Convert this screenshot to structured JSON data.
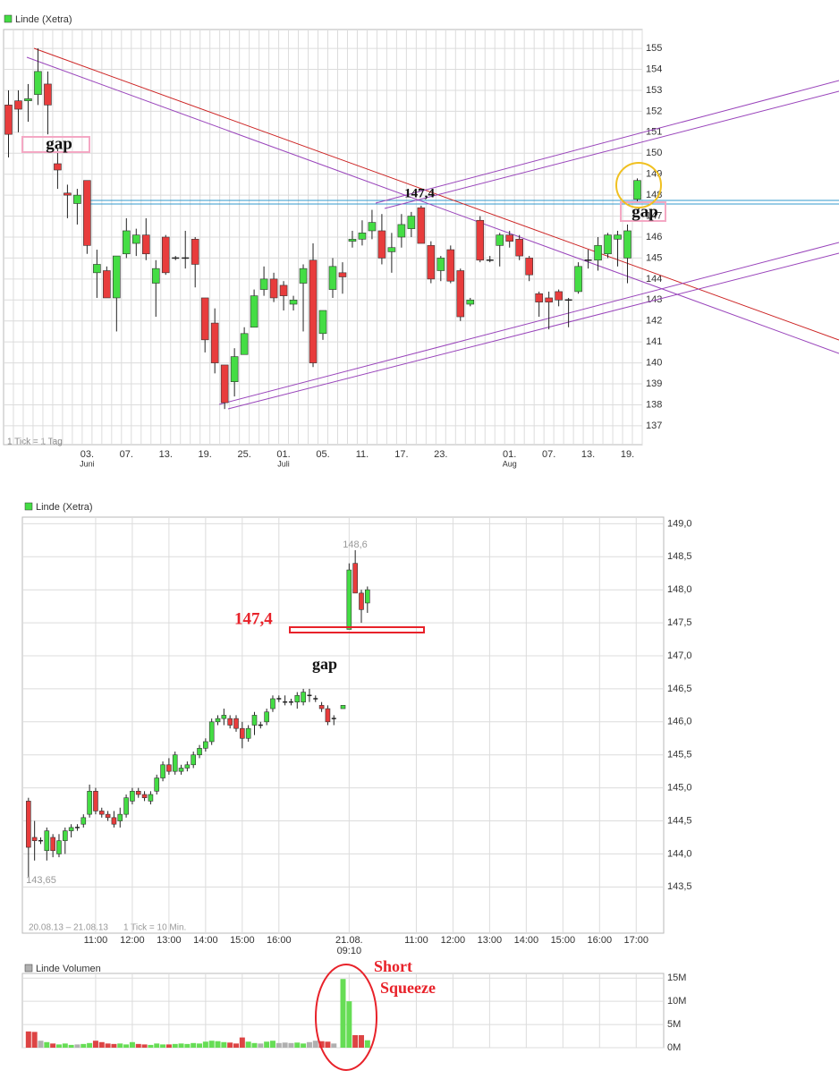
{
  "chart_data": [
    {
      "type": "candlestick",
      "title": "Linde (Xetra)",
      "footnote": "1 Tick = 1 Tag",
      "up_color": "#44dd44",
      "down_color": "#e83c3c",
      "flat_color": "#222222",
      "categories": [
        null,
        null,
        null,
        null,
        null,
        null,
        null,
        null,
        "03.",
        null,
        null,
        null,
        "07.",
        null,
        null,
        null,
        "13.",
        null,
        null,
        null,
        "19.",
        null,
        null,
        null,
        "25.",
        null,
        null,
        null,
        "01.",
        null,
        null,
        null,
        "05.",
        null,
        null,
        null,
        "11.",
        null,
        null,
        null,
        "17.",
        null,
        null,
        null,
        "23.",
        null,
        null,
        null,
        null,
        null,
        null,
        "01.",
        null,
        null,
        null,
        "07.",
        null,
        null,
        null,
        "13.",
        null,
        null,
        null,
        "19.",
        null
      ],
      "months": [
        null,
        null,
        null,
        null,
        null,
        null,
        null,
        null,
        "Juni",
        null,
        null,
        null,
        null,
        null,
        null,
        null,
        null,
        null,
        null,
        null,
        null,
        null,
        null,
        null,
        null,
        null,
        null,
        null,
        "Juli",
        null,
        null,
        null,
        null,
        null,
        null,
        null,
        null,
        null,
        null,
        null,
        null,
        null,
        null,
        null,
        null,
        null,
        null,
        null,
        null,
        null,
        null,
        "Aug",
        null,
        null,
        null,
        null,
        null,
        null,
        null,
        null,
        null,
        null,
        null,
        null,
        null
      ],
      "open": [
        152.3,
        152.5,
        152.5,
        152.8,
        153.3,
        149.5,
        148.1,
        147.6,
        148.7,
        144.3,
        144.4,
        143.1,
        145.2,
        145.7,
        146.1,
        143.8,
        146.0,
        145.0,
        145.0,
        145.9,
        143.1,
        141.9,
        139.9,
        139.1,
        140.4,
        141.7,
        143.5,
        144.0,
        143.7,
        142.8,
        143.8,
        144.9,
        141.4,
        143.5,
        144.3,
        145.8,
        145.9,
        146.3,
        146.3,
        145.3,
        146.0,
        146.4,
        147.4,
        145.6,
        144.4,
        145.4,
        144.4,
        142.8,
        146.8,
        144.9,
        145.6,
        146.1,
        145.9,
        145.0,
        143.3,
        143.1,
        143.4,
        143.0,
        143.4,
        144.9,
        144.9,
        145.2,
        145.9,
        145.0,
        147.8
      ],
      "high": [
        153.0,
        153.0,
        153.3,
        155.0,
        153.9,
        150.2,
        148.5,
        148.3,
        148.6,
        145.4,
        144.6,
        145.1,
        146.9,
        146.4,
        146.9,
        144.9,
        146.1,
        145.1,
        146.3,
        146.0,
        143.1,
        142.6,
        139.9,
        140.7,
        141.7,
        143.5,
        144.6,
        144.3,
        143.9,
        143.2,
        144.7,
        145.7,
        142.5,
        145.0,
        144.8,
        146.3,
        146.8,
        147.3,
        147.1,
        146.2,
        147.1,
        147.2,
        147.5,
        145.8,
        145.1,
        145.6,
        144.5,
        143.1,
        147.0,
        145.1,
        146.2,
        146.3,
        146.1,
        145.1,
        143.4,
        143.4,
        143.5,
        143.1,
        144.8,
        145.4,
        146.0,
        146.2,
        146.3,
        146.6,
        148.8
      ],
      "low": [
        149.8,
        151.0,
        151.5,
        152.3,
        150.9,
        148.3,
        146.9,
        146.6,
        145.2,
        143.1,
        143.1,
        141.5,
        145.0,
        145.1,
        144.9,
        142.2,
        144.2,
        144.9,
        144.5,
        143.6,
        140.5,
        139.5,
        137.8,
        138.4,
        140.4,
        141.7,
        143.2,
        142.9,
        142.5,
        142.5,
        141.5,
        139.8,
        141.1,
        143.1,
        143.3,
        145.5,
        145.6,
        145.9,
        144.7,
        144.3,
        145.5,
        146.0,
        145.7,
        143.8,
        143.9,
        143.8,
        142.0,
        142.7,
        144.8,
        144.8,
        144.6,
        145.5,
        144.9,
        143.9,
        142.2,
        141.6,
        142.7,
        141.7,
        143.3,
        144.5,
        144.4,
        145.0,
        144.6,
        143.8,
        147.7
      ],
      "close": [
        150.9,
        152.1,
        152.6,
        153.9,
        152.3,
        149.2,
        148.0,
        148.0,
        145.6,
        144.7,
        143.1,
        145.1,
        146.3,
        146.1,
        145.2,
        144.5,
        144.3,
        145.0,
        145.0,
        144.7,
        141.1,
        140.0,
        138.1,
        140.3,
        141.4,
        143.2,
        144.0,
        143.1,
        143.2,
        143.0,
        144.5,
        140.0,
        142.5,
        144.6,
        144.1,
        145.9,
        146.2,
        146.7,
        145.0,
        145.5,
        146.6,
        147.0,
        145.7,
        144.0,
        145.0,
        143.9,
        142.2,
        143.0,
        144.9,
        144.9,
        146.1,
        145.8,
        145.1,
        144.2,
        142.9,
        142.9,
        143.0,
        143.0,
        144.6,
        144.9,
        145.6,
        146.1,
        146.1,
        146.3,
        148.7
      ],
      "ylim": [
        136.1,
        155.9
      ],
      "yticks": [
        137,
        138,
        139,
        140,
        141,
        142,
        143,
        144,
        145,
        146,
        147,
        148,
        149,
        150,
        151,
        152,
        153,
        154,
        155
      ],
      "grid": true,
      "annotations": [
        "gap",
        "147,4",
        "gap"
      ]
    },
    {
      "type": "candlestick",
      "title": "Linde (Xetra)",
      "period": "20.08.13 – 21.08.13",
      "footnote": "1 Tick = 10 Min.",
      "up_color": "#44dd44",
      "down_color": "#e83c3c",
      "flat_color": "#222222",
      "x": [
        "20.08.13 09:10",
        "20.08.13 09:20",
        "20.08.13 09:30",
        "20.08.13 09:40",
        "20.08.13 09:50",
        "20.08.13 10:00",
        "20.08.13 10:10",
        "20.08.13 10:20",
        "20.08.13 10:30",
        "20.08.13 10:40",
        "20.08.13 10:50",
        "20.08.13 11:00",
        "20.08.13 11:10",
        "20.08.13 11:20",
        "20.08.13 11:30",
        "20.08.13 11:40",
        "20.08.13 11:50",
        "20.08.13 12:00",
        "20.08.13 12:10",
        "20.08.13 12:20",
        "20.08.13 12:30",
        "20.08.13 12:40",
        "20.08.13 12:50",
        "20.08.13 13:00",
        "20.08.13 13:10",
        "20.08.13 13:20",
        "20.08.13 13:30",
        "20.08.13 13:40",
        "20.08.13 13:50",
        "20.08.13 14:00",
        "20.08.13 14:10",
        "20.08.13 14:20",
        "20.08.13 14:30",
        "20.08.13 14:40",
        "20.08.13 14:50",
        "20.08.13 15:00",
        "20.08.13 15:10",
        "20.08.13 15:20",
        "20.08.13 15:30",
        "20.08.13 15:40",
        "20.08.13 15:50",
        "20.08.13 16:00",
        "20.08.13 16:10",
        "20.08.13 16:20",
        "20.08.13 16:30",
        "20.08.13 16:40",
        "20.08.13 16:50",
        "20.08.13 17:00",
        "20.08.13 17:10",
        "20.08.13 17:20",
        "20.08.13 17:30",
        "21.08.13 09:00",
        "21.08.13 09:10",
        "21.08.13 09:20",
        "21.08.13 09:30",
        "21.08.13 09:40"
      ],
      "open": [
        144.8,
        144.25,
        144.2,
        144.05,
        144.25,
        144.0,
        144.2,
        144.35,
        144.4,
        144.45,
        144.6,
        144.95,
        144.65,
        144.6,
        144.55,
        144.5,
        144.6,
        144.8,
        144.95,
        144.9,
        144.8,
        144.95,
        145.15,
        145.35,
        145.25,
        145.25,
        145.3,
        145.35,
        145.5,
        145.6,
        145.7,
        146.0,
        146.05,
        146.05,
        146.05,
        145.9,
        145.75,
        145.95,
        145.95,
        146.0,
        146.2,
        146.35,
        146.3,
        146.3,
        146.3,
        146.3,
        146.4,
        146.35,
        146.25,
        146.2,
        146.05,
        146.2,
        147.4,
        148.4,
        147.95,
        147.8
      ],
      "high": [
        144.85,
        144.5,
        144.25,
        144.4,
        144.3,
        144.3,
        144.4,
        144.45,
        144.45,
        144.6,
        145.05,
        145.0,
        144.7,
        144.65,
        144.65,
        144.7,
        144.9,
        145.0,
        145.0,
        144.95,
        144.95,
        145.2,
        145.4,
        145.45,
        145.55,
        145.35,
        145.4,
        145.55,
        145.65,
        145.75,
        146.05,
        146.1,
        146.2,
        146.1,
        146.1,
        146.0,
        145.95,
        146.15,
        146.0,
        146.2,
        146.4,
        146.4,
        146.4,
        146.35,
        146.45,
        146.5,
        146.5,
        146.4,
        146.3,
        146.25,
        146.1,
        146.25,
        148.4,
        148.6,
        148.0,
        148.05
      ],
      "low": [
        143.65,
        143.9,
        144.15,
        143.9,
        143.95,
        143.95,
        144.0,
        144.25,
        144.35,
        144.4,
        144.55,
        144.6,
        144.55,
        144.5,
        144.4,
        144.4,
        144.55,
        144.75,
        144.85,
        144.8,
        144.75,
        144.9,
        145.1,
        145.2,
        145.2,
        145.2,
        145.25,
        145.3,
        145.45,
        145.55,
        145.65,
        145.95,
        145.95,
        145.9,
        145.85,
        145.6,
        145.7,
        145.8,
        145.9,
        145.95,
        146.15,
        146.3,
        146.25,
        146.25,
        146.2,
        146.25,
        146.3,
        146.3,
        146.15,
        145.95,
        145.95,
        146.2,
        147.4,
        147.95,
        147.5,
        147.65
      ],
      "close": [
        144.1,
        144.2,
        144.2,
        144.35,
        144.05,
        144.2,
        144.35,
        144.4,
        144.4,
        144.55,
        144.95,
        144.65,
        144.6,
        144.55,
        144.45,
        144.6,
        144.85,
        144.95,
        144.9,
        144.85,
        144.9,
        145.15,
        145.35,
        145.25,
        145.5,
        145.3,
        145.35,
        145.5,
        145.6,
        145.7,
        146.0,
        146.05,
        146.1,
        145.95,
        145.9,
        145.75,
        145.9,
        146.1,
        145.95,
        146.15,
        146.35,
        146.35,
        146.3,
        146.3,
        146.4,
        146.45,
        146.4,
        146.35,
        146.2,
        146.0,
        146.05,
        146.25,
        148.3,
        147.95,
        147.7,
        148.0
      ],
      "xlim": [
        "20.08.13 09:00",
        "21.08.13 17:45"
      ],
      "xticks": [
        {
          "value": "20.08.13 11:00",
          "label": "11:00"
        },
        {
          "value": "20.08.13 12:00",
          "label": "12:00"
        },
        {
          "value": "20.08.13 13:00",
          "label": "13:00"
        },
        {
          "value": "20.08.13 14:00",
          "label": "14:00"
        },
        {
          "value": "20.08.13 15:00",
          "label": "15:00"
        },
        {
          "value": "20.08.13 16:00",
          "label": "16:00"
        },
        {
          "value": "21.08.13 09:10",
          "label": "21.08.\n09:10"
        },
        {
          "value": "21.08.13 11:00",
          "label": "11:00"
        },
        {
          "value": "21.08.13 12:00",
          "label": "12:00"
        },
        {
          "value": "21.08.13 13:00",
          "label": "13:00"
        },
        {
          "value": "21.08.13 14:00",
          "label": "14:00"
        },
        {
          "value": "21.08.13 15:00",
          "label": "15:00"
        },
        {
          "value": "21.08.13 16:00",
          "label": "16:00"
        },
        {
          "value": "21.08.13 17:00",
          "label": "17:00"
        }
      ],
      "ylim": [
        142.8,
        149.1
      ],
      "yticks": [
        {
          "value": 143.5,
          "label": "143,5"
        },
        {
          "value": 144.0,
          "label": "144,0"
        },
        {
          "value": 144.5,
          "label": "144,5"
        },
        {
          "value": 145.0,
          "label": "145,0"
        },
        {
          "value": 145.5,
          "label": "145,5"
        },
        {
          "value": 146.0,
          "label": "146,0"
        },
        {
          "value": 146.5,
          "label": "146,5"
        },
        {
          "value": 147.0,
          "label": "147,0"
        },
        {
          "value": 147.5,
          "label": "147,5"
        },
        {
          "value": 148.0,
          "label": "148,0"
        },
        {
          "value": 148.5,
          "label": "148,5"
        },
        {
          "value": 149.0,
          "label": "149,0"
        }
      ],
      "grid": true,
      "high_label": {
        "value": 148.6,
        "label": "148,6"
      },
      "low_label": {
        "value": 143.65,
        "label": "143,65"
      },
      "annotations": [
        "147,4",
        "gap"
      ]
    },
    {
      "type": "volume",
      "title": "Linde Volumen",
      "up_color": "#66dd55",
      "down_color": "#dd4444",
      "flat_color": "#b0b0b0",
      "values": [
        3500000,
        3400000,
        1500000,
        1200000,
        900000,
        700000,
        900000,
        600000,
        700000,
        800000,
        1000000,
        1500000,
        1200000,
        900000,
        800000,
        900000,
        700000,
        1200000,
        800000,
        700000,
        600000,
        900000,
        700000,
        700000,
        800000,
        900000,
        800000,
        1000000,
        900000,
        1300000,
        1500000,
        1400000,
        1200000,
        1100000,
        900000,
        2200000,
        1300000,
        1000000,
        900000,
        1300000,
        1500000,
        1000000,
        1100000,
        1000000,
        1100000,
        900000,
        1200000,
        1500000,
        1400000,
        1300000,
        900000,
        14800000,
        10000000,
        2700000,
        2700000,
        1600000
      ],
      "ylim": [
        0,
        16000000
      ],
      "yticks": [
        {
          "value": 0,
          "label": "0M"
        },
        {
          "value": 5000000,
          "label": "5M"
        },
        {
          "value": 10000000,
          "label": "10M"
        },
        {
          "value": 15000000,
          "label": "15M"
        }
      ],
      "annotations": [
        "Short",
        "Squeeze"
      ]
    }
  ]
}
